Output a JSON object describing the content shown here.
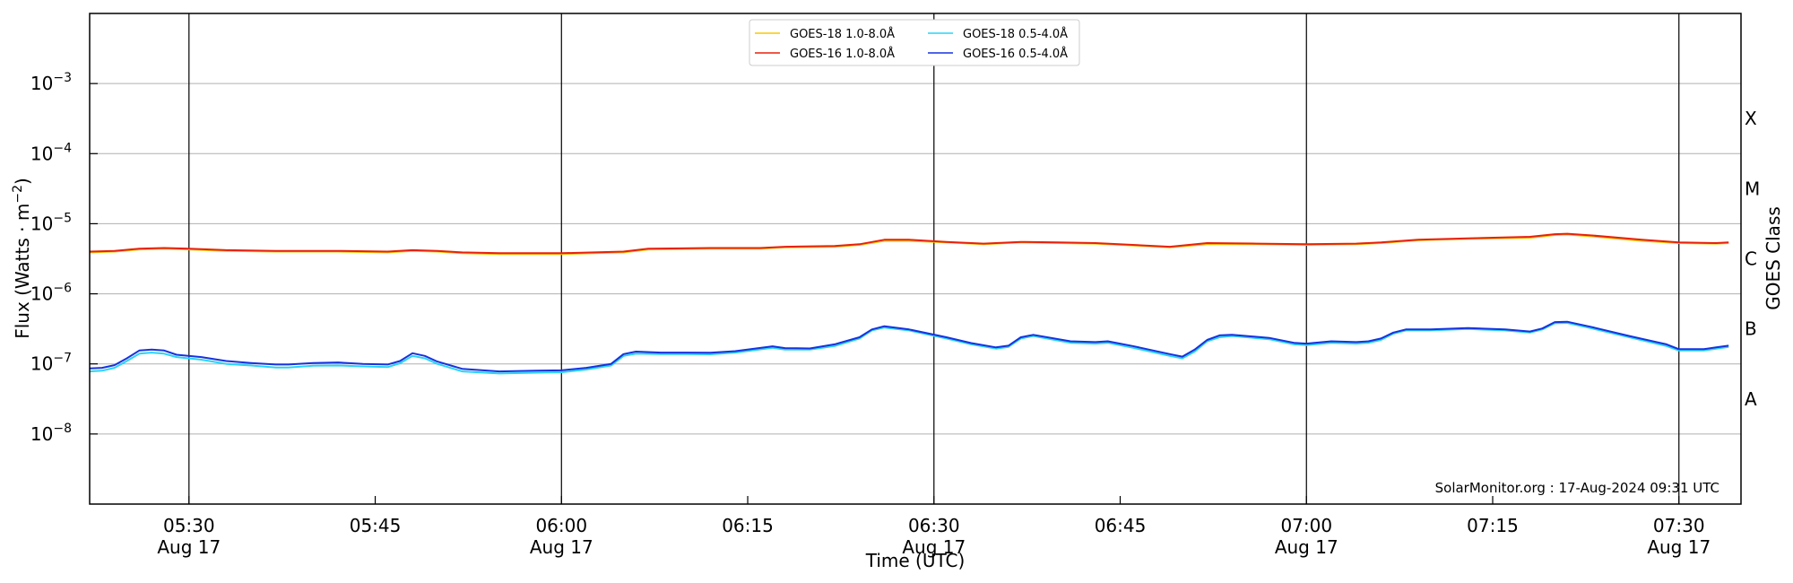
{
  "chart_data": {
    "type": "line",
    "xlabel": "Time (UTC)",
    "ylabel": "Flux (Watts · m",
    "ylabel_superscript": "−2",
    "ylabel_close": ")",
    "right_label": "GOES Class",
    "xlim": [
      "05:22",
      "07:35"
    ],
    "ylim_exp": [
      -9,
      -2
    ],
    "log_scale": true,
    "grid": "horizontal",
    "y_ticks": [
      {
        "exp": -8,
        "text": "−8"
      },
      {
        "exp": -7,
        "text": "−7"
      },
      {
        "exp": -6,
        "text": "−6"
      },
      {
        "exp": -5,
        "text": "−5"
      },
      {
        "exp": -4,
        "text": "−4"
      },
      {
        "exp": -3,
        "text": "−3"
      }
    ],
    "y_tick_base": "10",
    "x_ticks": [
      {
        "t": "05:30",
        "label": "05:30",
        "date": "Aug 17"
      },
      {
        "t": "05:45",
        "label": "05:45",
        "date": ""
      },
      {
        "t": "06:00",
        "label": "06:00",
        "date": "Aug 17"
      },
      {
        "t": "06:15",
        "label": "06:15",
        "date": ""
      },
      {
        "t": "06:30",
        "label": "06:30",
        "date": "Aug 17"
      },
      {
        "t": "06:45",
        "label": "06:45",
        "date": ""
      },
      {
        "t": "07:00",
        "label": "07:00",
        "date": "Aug 17"
      },
      {
        "t": "07:15",
        "label": "07:15",
        "date": ""
      },
      {
        "t": "07:30",
        "label": "07:30",
        "date": "Aug 17"
      }
    ],
    "vertical_lines": [
      "05:30",
      "06:00",
      "06:30",
      "07:00",
      "07:30"
    ],
    "goes_classes": [
      {
        "label": "A",
        "flux": 3.16e-08
      },
      {
        "label": "B",
        "flux": 3.16e-07
      },
      {
        "label": "C",
        "flux": 3.16e-06
      },
      {
        "label": "M",
        "flux": 3.16e-05
      },
      {
        "label": "X",
        "flux": 0.000316
      }
    ],
    "legend": {
      "placement": "top-center",
      "entries": [
        {
          "name": "GOES-18 1.0-8.0Å",
          "color": "#f5c800"
        },
        {
          "name": "GOES-16 1.0-8.0Å",
          "color": "#e8210c"
        },
        {
          "name": "GOES-18 0.5-4.0Å",
          "color": "#29d4f5"
        },
        {
          "name": "GOES-16 0.5-4.0Å",
          "color": "#1632e0"
        }
      ]
    },
    "series": [
      {
        "name": "GOES-18 1.0-8.0Å",
        "color": "#f5c800",
        "points": [
          [
            "05:22",
            3.9e-06
          ],
          [
            "05:24",
            4e-06
          ],
          [
            "05:26",
            4.3e-06
          ],
          [
            "05:28",
            4.4e-06
          ],
          [
            "05:30",
            4.3e-06
          ],
          [
            "05:33",
            4.1e-06
          ],
          [
            "05:37",
            4e-06
          ],
          [
            "05:42",
            4e-06
          ],
          [
            "05:46",
            3.9e-06
          ],
          [
            "05:48",
            4.1e-06
          ],
          [
            "05:50",
            4e-06
          ],
          [
            "05:52",
            3.8e-06
          ],
          [
            "05:55",
            3.7e-06
          ],
          [
            "06:00",
            3.7e-06
          ],
          [
            "06:05",
            3.9e-06
          ],
          [
            "06:07",
            4.3e-06
          ],
          [
            "06:12",
            4.4e-06
          ],
          [
            "06:16",
            4.4e-06
          ],
          [
            "06:18",
            4.6e-06
          ],
          [
            "06:22",
            4.7e-06
          ],
          [
            "06:24",
            5e-06
          ],
          [
            "06:26",
            5.7e-06
          ],
          [
            "06:28",
            5.7e-06
          ],
          [
            "06:31",
            5.4e-06
          ],
          [
            "06:34",
            5.1e-06
          ],
          [
            "06:37",
            5.4e-06
          ],
          [
            "06:40",
            5.3e-06
          ],
          [
            "06:43",
            5.2e-06
          ],
          [
            "06:46",
            4.9e-06
          ],
          [
            "06:49",
            4.6e-06
          ],
          [
            "06:52",
            5.1e-06
          ],
          [
            "06:56",
            5.1e-06
          ],
          [
            "07:00",
            5e-06
          ],
          [
            "07:04",
            5.1e-06
          ],
          [
            "07:06",
            5.3e-06
          ],
          [
            "07:09",
            5.8e-06
          ],
          [
            "07:13",
            6.1e-06
          ],
          [
            "07:18",
            6.3e-06
          ],
          [
            "07:20",
            6.9e-06
          ],
          [
            "07:21",
            7e-06
          ],
          [
            "07:23",
            6.6e-06
          ],
          [
            "07:27",
            5.7e-06
          ],
          [
            "07:30",
            5.3e-06
          ],
          [
            "07:33",
            5.2e-06
          ],
          [
            "07:34",
            5.3e-06
          ]
        ]
      },
      {
        "name": "GOES-16 1.0-8.0Å",
        "color": "#e8210c",
        "points": [
          [
            "05:22",
            4e-06
          ],
          [
            "05:24",
            4.1e-06
          ],
          [
            "05:26",
            4.4e-06
          ],
          [
            "05:28",
            4.5e-06
          ],
          [
            "05:30",
            4.4e-06
          ],
          [
            "05:33",
            4.2e-06
          ],
          [
            "05:37",
            4.1e-06
          ],
          [
            "05:42",
            4.1e-06
          ],
          [
            "05:46",
            4e-06
          ],
          [
            "05:48",
            4.2e-06
          ],
          [
            "05:50",
            4.1e-06
          ],
          [
            "05:52",
            3.9e-06
          ],
          [
            "05:55",
            3.8e-06
          ],
          [
            "06:00",
            3.8e-06
          ],
          [
            "06:05",
            4e-06
          ],
          [
            "06:07",
            4.4e-06
          ],
          [
            "06:12",
            4.5e-06
          ],
          [
            "06:16",
            4.5e-06
          ],
          [
            "06:18",
            4.7e-06
          ],
          [
            "06:22",
            4.8e-06
          ],
          [
            "06:24",
            5.1e-06
          ],
          [
            "06:26",
            5.9e-06
          ],
          [
            "06:28",
            5.9e-06
          ],
          [
            "06:31",
            5.5e-06
          ],
          [
            "06:34",
            5.2e-06
          ],
          [
            "06:37",
            5.5e-06
          ],
          [
            "06:40",
            5.4e-06
          ],
          [
            "06:43",
            5.3e-06
          ],
          [
            "06:46",
            5e-06
          ],
          [
            "06:49",
            4.7e-06
          ],
          [
            "06:52",
            5.3e-06
          ],
          [
            "06:56",
            5.2e-06
          ],
          [
            "07:00",
            5.1e-06
          ],
          [
            "07:04",
            5.2e-06
          ],
          [
            "07:06",
            5.4e-06
          ],
          [
            "07:09",
            5.9e-06
          ],
          [
            "07:13",
            6.2e-06
          ],
          [
            "07:18",
            6.5e-06
          ],
          [
            "07:20",
            7.1e-06
          ],
          [
            "07:21",
            7.2e-06
          ],
          [
            "07:23",
            6.8e-06
          ],
          [
            "07:27",
            5.9e-06
          ],
          [
            "07:30",
            5.4e-06
          ],
          [
            "07:33",
            5.3e-06
          ],
          [
            "07:34",
            5.4e-06
          ]
        ]
      },
      {
        "name": "GOES-18 0.5-4.0Å",
        "color": "#29d4f5",
        "points": [
          [
            "05:22",
            7.8e-08
          ],
          [
            "05:23",
            8e-08
          ],
          [
            "05:24",
            8.8e-08
          ],
          [
            "05:25",
            1.1e-07
          ],
          [
            "05:26",
            1.4e-07
          ],
          [
            "05:27",
            1.45e-07
          ],
          [
            "05:28",
            1.4e-07
          ],
          [
            "05:29",
            1.25e-07
          ],
          [
            "05:31",
            1.15e-07
          ],
          [
            "05:33",
            1e-07
          ],
          [
            "05:35",
            9.5e-08
          ],
          [
            "05:37",
            8.9e-08
          ],
          [
            "05:38",
            8.9e-08
          ],
          [
            "05:40",
            9.4e-08
          ],
          [
            "05:42",
            9.5e-08
          ],
          [
            "05:44",
            9.2e-08
          ],
          [
            "05:46",
            9e-08
          ],
          [
            "05:47",
            1.02e-07
          ],
          [
            "05:48",
            1.3e-07
          ],
          [
            "05:49",
            1.2e-07
          ],
          [
            "05:50",
            1e-07
          ],
          [
            "05:52",
            7.8e-08
          ],
          [
            "05:55",
            7.3e-08
          ],
          [
            "05:58",
            7.5e-08
          ],
          [
            "06:00",
            7.6e-08
          ],
          [
            "06:02",
            8.3e-08
          ],
          [
            "06:04",
            9.5e-08
          ],
          [
            "06:05",
            1.3e-07
          ],
          [
            "06:06",
            1.4e-07
          ],
          [
            "06:08",
            1.38e-07
          ],
          [
            "06:10",
            1.38e-07
          ],
          [
            "06:12",
            1.37e-07
          ],
          [
            "06:14",
            1.45e-07
          ],
          [
            "06:17",
            1.7e-07
          ],
          [
            "06:18",
            1.6e-07
          ],
          [
            "06:20",
            1.6e-07
          ],
          [
            "06:22",
            1.8e-07
          ],
          [
            "06:24",
            2.3e-07
          ],
          [
            "06:25",
            3e-07
          ],
          [
            "06:26",
            3.3e-07
          ],
          [
            "06:28",
            3e-07
          ],
          [
            "06:31",
            2.3e-07
          ],
          [
            "06:33",
            1.9e-07
          ],
          [
            "06:35",
            1.65e-07
          ],
          [
            "06:36",
            1.75e-07
          ],
          [
            "06:37",
            2.3e-07
          ],
          [
            "06:38",
            2.5e-07
          ],
          [
            "06:41",
            2e-07
          ],
          [
            "06:43",
            1.95e-07
          ],
          [
            "06:44",
            2e-07
          ],
          [
            "06:46",
            1.7e-07
          ],
          [
            "06:49",
            1.3e-07
          ],
          [
            "06:50",
            1.2e-07
          ],
          [
            "06:51",
            1.5e-07
          ],
          [
            "06:52",
            2.1e-07
          ],
          [
            "06:53",
            2.4e-07
          ],
          [
            "06:54",
            2.5e-07
          ],
          [
            "06:57",
            2.25e-07
          ],
          [
            "06:59",
            1.9e-07
          ],
          [
            "07:00",
            1.85e-07
          ],
          [
            "07:02",
            2e-07
          ],
          [
            "07:04",
            1.95e-07
          ],
          [
            "07:05",
            2e-07
          ],
          [
            "07:06",
            2.2e-07
          ],
          [
            "07:07",
            2.7e-07
          ],
          [
            "07:08",
            3e-07
          ],
          [
            "07:10",
            3e-07
          ],
          [
            "07:13",
            3.15e-07
          ],
          [
            "07:16",
            3e-07
          ],
          [
            "07:18",
            2.8e-07
          ],
          [
            "07:19",
            3.1e-07
          ],
          [
            "07:20",
            3.8e-07
          ],
          [
            "07:21",
            3.85e-07
          ],
          [
            "07:23",
            3.2e-07
          ],
          [
            "07:26",
            2.4e-07
          ],
          [
            "07:29",
            1.8e-07
          ],
          [
            "07:30",
            1.55e-07
          ],
          [
            "07:32",
            1.55e-07
          ],
          [
            "07:33",
            1.65e-07
          ],
          [
            "07:34",
            1.75e-07
          ]
        ]
      },
      {
        "name": "GOES-16 0.5-4.0Å",
        "color": "#1632e0",
        "points": [
          [
            "05:22",
            8.6e-08
          ],
          [
            "05:23",
            8.8e-08
          ],
          [
            "05:24",
            9.6e-08
          ],
          [
            "05:25",
            1.2e-07
          ],
          [
            "05:26",
            1.55e-07
          ],
          [
            "05:27",
            1.6e-07
          ],
          [
            "05:28",
            1.55e-07
          ],
          [
            "05:29",
            1.35e-07
          ],
          [
            "05:31",
            1.25e-07
          ],
          [
            "05:33",
            1.1e-07
          ],
          [
            "05:35",
            1.03e-07
          ],
          [
            "05:37",
            9.8e-08
          ],
          [
            "05:38",
            9.8e-08
          ],
          [
            "05:40",
            1.03e-07
          ],
          [
            "05:42",
            1.05e-07
          ],
          [
            "05:44",
            1e-07
          ],
          [
            "05:46",
            9.8e-08
          ],
          [
            "05:47",
            1.1e-07
          ],
          [
            "05:48",
            1.42e-07
          ],
          [
            "05:49",
            1.3e-07
          ],
          [
            "05:50",
            1.08e-07
          ],
          [
            "05:52",
            8.5e-08
          ],
          [
            "05:55",
            7.8e-08
          ],
          [
            "05:58",
            8e-08
          ],
          [
            "06:00",
            8.1e-08
          ],
          [
            "06:02",
            8.8e-08
          ],
          [
            "06:04",
            1e-07
          ],
          [
            "06:05",
            1.38e-07
          ],
          [
            "06:06",
            1.5e-07
          ],
          [
            "06:08",
            1.45e-07
          ],
          [
            "06:10",
            1.45e-07
          ],
          [
            "06:12",
            1.44e-07
          ],
          [
            "06:14",
            1.52e-07
          ],
          [
            "06:17",
            1.78e-07
          ],
          [
            "06:18",
            1.68e-07
          ],
          [
            "06:20",
            1.66e-07
          ],
          [
            "06:22",
            1.9e-07
          ],
          [
            "06:24",
            2.4e-07
          ],
          [
            "06:25",
            3.1e-07
          ],
          [
            "06:26",
            3.45e-07
          ],
          [
            "06:28",
            3.1e-07
          ],
          [
            "06:31",
            2.4e-07
          ],
          [
            "06:33",
            1.98e-07
          ],
          [
            "06:35",
            1.72e-07
          ],
          [
            "06:36",
            1.82e-07
          ],
          [
            "06:37",
            2.4e-07
          ],
          [
            "06:38",
            2.6e-07
          ],
          [
            "06:41",
            2.1e-07
          ],
          [
            "06:43",
            2.05e-07
          ],
          [
            "06:44",
            2.1e-07
          ],
          [
            "06:46",
            1.8e-07
          ],
          [
            "06:49",
            1.38e-07
          ],
          [
            "06:50",
            1.27e-07
          ],
          [
            "06:51",
            1.6e-07
          ],
          [
            "06:52",
            2.2e-07
          ],
          [
            "06:53",
            2.55e-07
          ],
          [
            "06:54",
            2.6e-07
          ],
          [
            "06:57",
            2.35e-07
          ],
          [
            "06:59",
            2e-07
          ],
          [
            "07:00",
            1.95e-07
          ],
          [
            "07:02",
            2.1e-07
          ],
          [
            "07:04",
            2.05e-07
          ],
          [
            "07:05",
            2.1e-07
          ],
          [
            "07:06",
            2.3e-07
          ],
          [
            "07:07",
            2.8e-07
          ],
          [
            "07:08",
            3.1e-07
          ],
          [
            "07:10",
            3.1e-07
          ],
          [
            "07:13",
            3.25e-07
          ],
          [
            "07:16",
            3.1e-07
          ],
          [
            "07:18",
            2.9e-07
          ],
          [
            "07:19",
            3.2e-07
          ],
          [
            "07:20",
            3.95e-07
          ],
          [
            "07:21",
            4e-07
          ],
          [
            "07:23",
            3.35e-07
          ],
          [
            "07:26",
            2.5e-07
          ],
          [
            "07:29",
            1.9e-07
          ],
          [
            "07:30",
            1.62e-07
          ],
          [
            "07:32",
            1.62e-07
          ],
          [
            "07:33",
            1.72e-07
          ],
          [
            "07:34",
            1.82e-07
          ]
        ]
      }
    ]
  },
  "credit": "SolarMonitor.org : 17-Aug-2024 09:31 UTC"
}
